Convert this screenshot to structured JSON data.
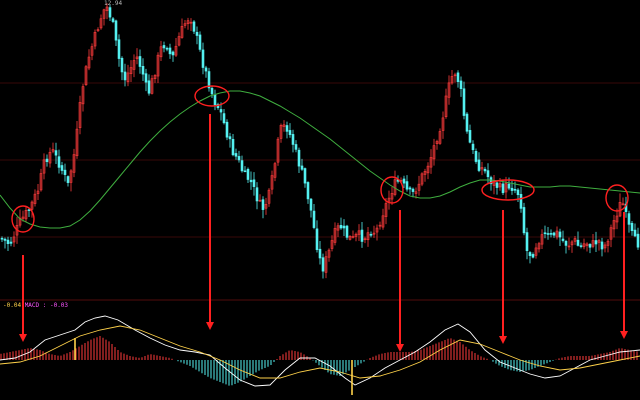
{
  "price_label": "12.94",
  "macd_header": {
    "value": "-0.04",
    "rest": "MACD : -0.03"
  },
  "colors": {
    "background": "#000000",
    "up_candle": "#ff3b3b",
    "down_candle": "#54f0f0",
    "moving_average": "#3fae3f",
    "grid": "#6e1212",
    "annotation": "#ff2020",
    "dif_line": "#ffffff",
    "dea_line": "#ffd24a"
  },
  "chart_data": [
    {
      "type": "candlestick",
      "panel": "price",
      "title": "",
      "xlabel": "",
      "ylabel": "",
      "moving_average_points": [
        [
          0,
          195
        ],
        [
          10,
          208
        ],
        [
          20,
          219
        ],
        [
          30,
          224
        ],
        [
          40,
          227
        ],
        [
          50,
          228
        ],
        [
          60,
          228
        ],
        [
          70,
          226
        ],
        [
          80,
          220
        ],
        [
          90,
          211
        ],
        [
          100,
          200
        ],
        [
          110,
          188
        ],
        [
          120,
          176
        ],
        [
          130,
          164
        ],
        [
          140,
          152
        ],
        [
          150,
          141
        ],
        [
          160,
          131
        ],
        [
          170,
          122
        ],
        [
          180,
          114
        ],
        [
          190,
          107
        ],
        [
          200,
          101
        ],
        [
          210,
          96
        ],
        [
          220,
          93
        ],
        [
          230,
          91
        ],
        [
          240,
          91
        ],
        [
          250,
          93
        ],
        [
          260,
          96
        ],
        [
          270,
          101
        ],
        [
          280,
          106
        ],
        [
          290,
          112
        ],
        [
          300,
          118
        ],
        [
          310,
          125
        ],
        [
          320,
          132
        ],
        [
          330,
          139
        ],
        [
          340,
          147
        ],
        [
          350,
          155
        ],
        [
          360,
          163
        ],
        [
          370,
          171
        ],
        [
          380,
          178
        ],
        [
          390,
          185
        ],
        [
          400,
          191
        ],
        [
          410,
          196
        ],
        [
          420,
          198
        ],
        [
          430,
          198
        ],
        [
          440,
          196
        ],
        [
          450,
          192
        ],
        [
          460,
          187
        ],
        [
          470,
          183
        ],
        [
          480,
          180
        ],
        [
          490,
          180
        ],
        [
          500,
          181
        ],
        [
          510,
          183
        ],
        [
          520,
          185
        ],
        [
          530,
          187
        ],
        [
          540,
          187
        ],
        [
          550,
          187
        ],
        [
          560,
          186
        ],
        [
          570,
          186
        ],
        [
          580,
          187
        ],
        [
          590,
          188
        ],
        [
          600,
          189
        ],
        [
          610,
          190
        ],
        [
          620,
          191
        ],
        [
          630,
          192
        ],
        [
          640,
          193
        ]
      ],
      "close_path": [
        [
          0,
          238
        ],
        [
          10,
          244
        ],
        [
          20,
          222
        ],
        [
          30,
          208
        ],
        [
          38,
          190
        ],
        [
          45,
          160
        ],
        [
          52,
          150
        ],
        [
          60,
          165
        ],
        [
          68,
          185
        ],
        [
          75,
          150
        ],
        [
          82,
          90
        ],
        [
          88,
          60
        ],
        [
          94,
          40
        ],
        [
          100,
          20
        ],
        [
          106,
          5
        ],
        [
          112,
          20
        ],
        [
          118,
          55
        ],
        [
          124,
          80
        ],
        [
          130,
          70
        ],
        [
          136,
          55
        ],
        [
          142,
          70
        ],
        [
          148,
          95
        ],
        [
          154,
          75
        ],
        [
          160,
          50
        ],
        [
          166,
          42
        ],
        [
          172,
          60
        ],
        [
          178,
          40
        ],
        [
          184,
          25
        ],
        [
          190,
          15
        ],
        [
          196,
          35
        ],
        [
          202,
          60
        ],
        [
          208,
          80
        ],
        [
          214,
          100
        ],
        [
          220,
          110
        ],
        [
          226,
          130
        ],
        [
          232,
          150
        ],
        [
          238,
          160
        ],
        [
          244,
          175
        ],
        [
          250,
          180
        ],
        [
          256,
          195
        ],
        [
          262,
          210
        ],
        [
          268,
          200
        ],
        [
          274,
          170
        ],
        [
          280,
          130
        ],
        [
          286,
          125
        ],
        [
          292,
          140
        ],
        [
          298,
          160
        ],
        [
          304,
          180
        ],
        [
          310,
          205
        ],
        [
          316,
          240
        ],
        [
          322,
          270
        ],
        [
          328,
          255
        ],
        [
          334,
          235
        ],
        [
          340,
          225
        ],
        [
          346,
          235
        ],
        [
          352,
          240
        ],
        [
          358,
          235
        ],
        [
          364,
          238
        ],
        [
          370,
          230
        ],
        [
          376,
          232
        ],
        [
          382,
          215
        ],
        [
          388,
          200
        ],
        [
          394,
          185
        ],
        [
          400,
          180
        ],
        [
          406,
          190
        ],
        [
          412,
          195
        ],
        [
          418,
          185
        ],
        [
          424,
          172
        ],
        [
          430,
          160
        ],
        [
          436,
          140
        ],
        [
          442,
          120
        ],
        [
          448,
          90
        ],
        [
          454,
          70
        ],
        [
          460,
          85
        ],
        [
          466,
          130
        ],
        [
          472,
          150
        ],
        [
          478,
          165
        ],
        [
          484,
          170
        ],
        [
          490,
          180
        ],
        [
          496,
          185
        ],
        [
          502,
          190
        ],
        [
          508,
          185
        ],
        [
          514,
          188
        ],
        [
          520,
          195
        ],
        [
          526,
          250
        ],
        [
          532,
          255
        ],
        [
          538,
          240
        ],
        [
          544,
          235
        ],
        [
          550,
          238
        ],
        [
          556,
          232
        ],
        [
          562,
          240
        ],
        [
          568,
          245
        ],
        [
          574,
          240
        ],
        [
          580,
          248
        ],
        [
          586,
          242
        ],
        [
          592,
          245
        ],
        [
          598,
          240
        ],
        [
          604,
          248
        ],
        [
          610,
          232
        ],
        [
          616,
          215
        ],
        [
          622,
          200
        ],
        [
          628,
          225
        ],
        [
          634,
          240
        ],
        [
          640,
          245
        ]
      ],
      "grid_rows": [
        83,
        160,
        237
      ],
      "circled_points": [
        [
          23,
          219
        ],
        [
          212,
          96
        ],
        [
          392,
          190
        ],
        [
          508,
          190
        ],
        [
          617,
          198
        ]
      ],
      "arrow_targets": [
        {
          "x": 23,
          "from": 255,
          "to": 342
        },
        {
          "x": 210,
          "from": 114,
          "to": 330
        },
        {
          "x": 400,
          "from": 210,
          "to": 352
        },
        {
          "x": 503,
          "from": 210,
          "to": 344
        },
        {
          "x": 624,
          "from": 212,
          "to": 339
        }
      ]
    },
    {
      "type": "macd",
      "panel": "indicator",
      "title": "",
      "histogram_points": [
        [
          0,
          6
        ],
        [
          10,
          8
        ],
        [
          20,
          10
        ],
        [
          30,
          12
        ],
        [
          40,
          10
        ],
        [
          50,
          6
        ],
        [
          60,
          4
        ],
        [
          70,
          8
        ],
        [
          80,
          14
        ],
        [
          90,
          20
        ],
        [
          100,
          24
        ],
        [
          110,
          18
        ],
        [
          120,
          8
        ],
        [
          130,
          4
        ],
        [
          140,
          2
        ],
        [
          150,
          6
        ],
        [
          160,
          4
        ],
        [
          170,
          2
        ],
        [
          180,
          -2
        ],
        [
          190,
          -6
        ],
        [
          200,
          -12
        ],
        [
          210,
          -18
        ],
        [
          220,
          -22
        ],
        [
          230,
          -26
        ],
        [
          240,
          -22
        ],
        [
          250,
          -16
        ],
        [
          260,
          -10
        ],
        [
          270,
          -6
        ],
        [
          280,
          4
        ],
        [
          290,
          10
        ],
        [
          300,
          8
        ],
        [
          310,
          2
        ],
        [
          320,
          -6
        ],
        [
          330,
          -14
        ],
        [
          340,
          -16
        ],
        [
          350,
          -10
        ],
        [
          360,
          -4
        ],
        [
          370,
          2
        ],
        [
          380,
          6
        ],
        [
          390,
          8
        ],
        [
          400,
          8
        ],
        [
          410,
          8
        ],
        [
          420,
          10
        ],
        [
          430,
          14
        ],
        [
          440,
          18
        ],
        [
          450,
          22
        ],
        [
          460,
          18
        ],
        [
          470,
          10
        ],
        [
          480,
          4
        ],
        [
          490,
          0
        ],
        [
          500,
          -6
        ],
        [
          510,
          -10
        ],
        [
          520,
          -12
        ],
        [
          530,
          -10
        ],
        [
          540,
          -6
        ],
        [
          550,
          -2
        ],
        [
          560,
          2
        ],
        [
          570,
          4
        ],
        [
          580,
          4
        ],
        [
          590,
          4
        ],
        [
          600,
          6
        ],
        [
          610,
          8
        ],
        [
          620,
          12
        ],
        [
          630,
          10
        ],
        [
          640,
          8
        ]
      ],
      "dif_points": [
        [
          0,
          360
        ],
        [
          15,
          358
        ],
        [
          30,
          352
        ],
        [
          45,
          340
        ],
        [
          60,
          335
        ],
        [
          75,
          330
        ],
        [
          85,
          322
        ],
        [
          95,
          318
        ],
        [
          105,
          316
        ],
        [
          118,
          320
        ],
        [
          135,
          330
        ],
        [
          150,
          338
        ],
        [
          165,
          345
        ],
        [
          180,
          350
        ],
        [
          195,
          352
        ],
        [
          210,
          355
        ],
        [
          225,
          368
        ],
        [
          240,
          380
        ],
        [
          255,
          386
        ],
        [
          270,
          385
        ],
        [
          285,
          370
        ],
        [
          300,
          358
        ],
        [
          315,
          358
        ],
        [
          330,
          366
        ],
        [
          345,
          378
        ],
        [
          355,
          385
        ],
        [
          370,
          378
        ],
        [
          385,
          368
        ],
        [
          400,
          360
        ],
        [
          415,
          352
        ],
        [
          430,
          342
        ],
        [
          445,
          330
        ],
        [
          458,
          324
        ],
        [
          470,
          332
        ],
        [
          485,
          350
        ],
        [
          500,
          362
        ],
        [
          515,
          368
        ],
        [
          530,
          374
        ],
        [
          545,
          378
        ],
        [
          560,
          376
        ],
        [
          575,
          368
        ],
        [
          590,
          360
        ],
        [
          605,
          356
        ],
        [
          620,
          352
        ],
        [
          640,
          350
        ]
      ],
      "dea_points": [
        [
          0,
          364
        ],
        [
          20,
          362
        ],
        [
          40,
          356
        ],
        [
          60,
          346
        ],
        [
          80,
          336
        ],
        [
          100,
          330
        ],
        [
          120,
          326
        ],
        [
          140,
          330
        ],
        [
          160,
          338
        ],
        [
          180,
          346
        ],
        [
          200,
          352
        ],
        [
          220,
          360
        ],
        [
          240,
          370
        ],
        [
          260,
          378
        ],
        [
          280,
          378
        ],
        [
          300,
          372
        ],
        [
          320,
          368
        ],
        [
          340,
          372
        ],
        [
          360,
          378
        ],
        [
          380,
          376
        ],
        [
          400,
          370
        ],
        [
          420,
          362
        ],
        [
          440,
          350
        ],
        [
          460,
          340
        ],
        [
          480,
          344
        ],
        [
          500,
          352
        ],
        [
          520,
          360
        ],
        [
          540,
          366
        ],
        [
          560,
          370
        ],
        [
          580,
          368
        ],
        [
          600,
          364
        ],
        [
          620,
          360
        ],
        [
          640,
          356
        ]
      ],
      "zero_line": 360,
      "markers": [
        {
          "x": 75,
          "y1": 338,
          "y2": 360
        },
        {
          "x": 352,
          "y1": 360,
          "y2": 395
        }
      ]
    }
  ]
}
